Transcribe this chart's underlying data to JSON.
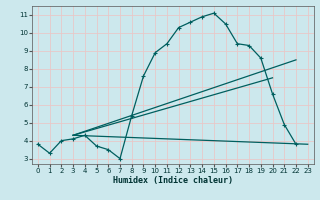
{
  "title": "",
  "xlabel": "Humidex (Indice chaleur)",
  "ylabel": "",
  "bg_color": "#cce8ed",
  "grid_color": "#e8c8c8",
  "line_color": "#005f5f",
  "xlim": [
    -0.5,
    23.5
  ],
  "ylim": [
    2.7,
    11.5
  ],
  "yticks": [
    3,
    4,
    5,
    6,
    7,
    8,
    9,
    10,
    11
  ],
  "xticks": [
    0,
    1,
    2,
    3,
    4,
    5,
    6,
    7,
    8,
    9,
    10,
    11,
    12,
    13,
    14,
    15,
    16,
    17,
    18,
    19,
    20,
    21,
    22,
    23
  ],
  "series0_x": [
    0,
    1,
    2,
    3,
    4,
    5,
    6,
    7,
    8,
    9,
    10,
    11,
    12,
    13,
    14,
    15,
    16,
    17,
    18,
    19,
    20,
    21,
    22
  ],
  "series0_y": [
    3.8,
    3.3,
    4.0,
    4.1,
    4.3,
    3.7,
    3.5,
    3.0,
    5.4,
    7.6,
    8.9,
    9.4,
    10.3,
    10.6,
    10.9,
    11.1,
    10.5,
    9.4,
    9.3,
    8.6,
    6.6,
    4.9,
    3.8
  ],
  "line1_x": [
    3,
    23
  ],
  "line1_y": [
    4.3,
    3.8
  ],
  "line2_x": [
    3,
    22
  ],
  "line2_y": [
    4.3,
    8.5
  ],
  "line3_x": [
    3,
    20
  ],
  "line3_y": [
    4.3,
    7.5
  ]
}
